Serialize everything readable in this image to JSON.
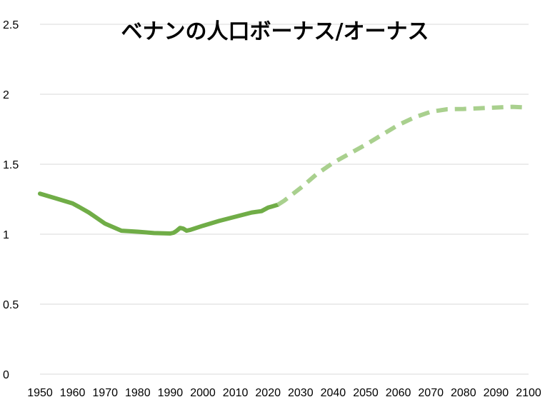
{
  "chart_data": {
    "type": "line",
    "title": "ベナンの人口ボーナス/オーナス",
    "xlabel": "",
    "ylabel": "",
    "xlim": [
      1950,
      2100
    ],
    "ylim": [
      0,
      2.5
    ],
    "grid": true,
    "x_ticks": [
      "1950",
      "1960",
      "1970",
      "1980",
      "1990",
      "2000",
      "2010",
      "2020",
      "2030",
      "2040",
      "2050",
      "2060",
      "2070",
      "2080",
      "2090",
      "2100"
    ],
    "y_ticks": [
      "0",
      "0.5",
      "1",
      "1.5",
      "2",
      "2.5"
    ],
    "series": [
      {
        "style": "solid",
        "color": "#70ad47",
        "x": [
          1950,
          1955,
          1960,
          1962,
          1965,
          1970,
          1975,
          1980,
          1985,
          1990,
          1991,
          1992,
          1993,
          1994,
          1995,
          1996,
          2000,
          2005,
          2010,
          2015,
          2018,
          2020,
          2023
        ],
        "y": [
          1.29,
          1.255,
          1.22,
          1.195,
          1.155,
          1.075,
          1.025,
          1.018,
          1.008,
          1.005,
          1.01,
          1.025,
          1.045,
          1.04,
          1.025,
          1.03,
          1.06,
          1.095,
          1.125,
          1.155,
          1.165,
          1.19,
          1.21
        ]
      },
      {
        "style": "dashed",
        "color": "#a9d08e",
        "x": [
          2023,
          2025,
          2030,
          2035,
          2040,
          2045,
          2050,
          2055,
          2060,
          2065,
          2070,
          2075,
          2080,
          2085,
          2090,
          2095,
          2100
        ],
        "y": [
          1.21,
          1.24,
          1.33,
          1.43,
          1.51,
          1.575,
          1.64,
          1.71,
          1.78,
          1.835,
          1.875,
          1.893,
          1.895,
          1.9,
          1.905,
          1.91,
          1.905
        ]
      }
    ]
  }
}
